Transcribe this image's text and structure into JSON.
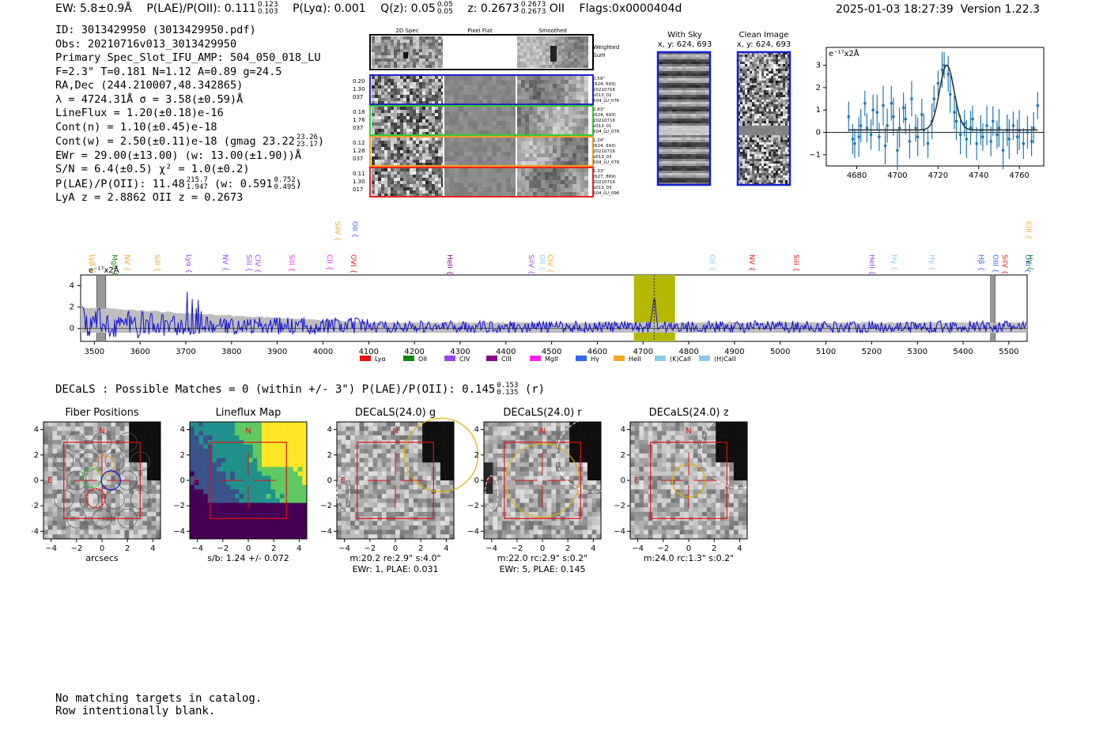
{
  "header": {
    "ew": "EW: 5.8±0.9Å",
    "plae_label": "P(LAE)/P(OII): 0.111",
    "plae_hi": "0.123",
    "plae_lo": "0.103",
    "plya": "P(Lyα): 0.001",
    "qz_label": "Q(z): 0.05",
    "qz_hi": "0.05",
    "qz_lo": "0.05",
    "z_label": "z: 0.2673",
    "z_hi": "0.2673",
    "z_lo": "0.2673",
    "z_line": "OII",
    "flags": "Flags:0x0000404d",
    "timestamp": "2025-01-03 18:27:39",
    "version": "Version 1.22.3"
  },
  "info": {
    "id": "ID: 3013429950 (3013429950.pdf)",
    "obs": "Obs: 20210716v013_3013429950",
    "primary": "Primary Spec_Slot_IFU_AMP: 504_050_018_LU",
    "fit": "F=2.3\"  T=0.181  N=1.12  A=0.89  g=24.5",
    "radec": "RA,Dec (244.210007,48.342865)",
    "lambda": "λ = 4724.31Å  σ = 3.58(±0.59)Å",
    "lineflux": "LineFlux = 1.20(±0.18)e-16",
    "contn": "Cont(n) = 1.10(±0.45)e-18",
    "contw": "Cont(w) = 2.50(±0.11)e-18 (gmag 23.22",
    "contw_hi": "23.26",
    "contw_lo": "23.17",
    "contw_end": ")",
    "ewr": "EWr = 29.00(±13.00) (w: 13.00(±1.90))Å",
    "sn": "S/N = 6.4(±0.5)  χ² = 1.0(±0.2)",
    "plae": "P(LAE)/P(OII): 11.48",
    "plae_hi": "215.7",
    "plae_lo": "1.947",
    "plae_w": "(w: 0.591",
    "plae_w_hi": "0.752",
    "plae_w_lo": "0.495",
    "plae_end": ")",
    "lya_oii": "LyA z = 2.8862  OII z = 0.2673"
  },
  "cutouts": {
    "col_titles": [
      "2D Spec",
      "Pixel Flat",
      "Smoothed"
    ],
    "weighted_label": "Weighted Sum",
    "rows": [
      {
        "left": [
          "0.20",
          "1.30",
          "037"
        ],
        "right": [
          "0.59\"",
          "(624, 693)",
          "20210716",
          "v013_02",
          "504_LU_076"
        ],
        "color": "#2222cc"
      },
      {
        "left": [
          "0.18",
          "1.76",
          "037"
        ],
        "right": [
          "0.83\"",
          "(624, 693)",
          "20210716",
          "v013_01",
          "504_LU_076"
        ],
        "color": "#33cc33"
      },
      {
        "left": [
          "0.12",
          "1.28",
          "037"
        ],
        "right": [
          "1.24\"",
          "(624, 693)",
          "20210716",
          "v013_03",
          "504_LU_078"
        ],
        "color": "#f0a020"
      },
      {
        "left": [
          "0.11",
          "1.30",
          "017"
        ],
        "right": [
          "1.33\"",
          "(627, 869)",
          "20210716",
          "v013_03",
          "504_LU_096"
        ],
        "color": "#ee2222"
      }
    ],
    "with_sky_title": "With Sky",
    "with_sky_xy": "x, y: 624, 693",
    "clean_title": "Clean Image",
    "clean_xy": "x, y: 624, 693"
  },
  "zoom_fit": {
    "unit_label": "e⁻¹⁷x2Å",
    "xticks": [
      "4680",
      "4700",
      "4720",
      "4740",
      "4760"
    ],
    "yticks": [
      "3",
      "2",
      "1",
      "0",
      "−1"
    ]
  },
  "spectrum": {
    "unit_label": "e⁻¹⁷x2Å",
    "xticks": [
      "3500",
      "3600",
      "3700",
      "3800",
      "3900",
      "4000",
      "4100",
      "4200",
      "4300",
      "4400",
      "4500",
      "4600",
      "4700",
      "4800",
      "4900",
      "5000",
      "5100",
      "5200",
      "5300",
      "5400",
      "5500"
    ],
    "yticks": [
      "4",
      "2",
      "0"
    ],
    "legend": [
      {
        "label": "Lyα",
        "color": "#ee1111"
      },
      {
        "label": "OII",
        "color": "#118811"
      },
      {
        "label": "CIV",
        "color": "#9944ee"
      },
      {
        "label": "CIII",
        "color": "#880088"
      },
      {
        "label": "MgII",
        "color": "#ff22ee"
      },
      {
        "label": "Hγ",
        "color": "#3366ee"
      },
      {
        "label": "HeII",
        "color": "#f5a623"
      },
      {
        "label": "(K)CaII",
        "color": "#88ccee"
      },
      {
        "label": "(H)CaII",
        "color": "#88ccee"
      }
    ],
    "line_labels": [
      {
        "text": "Lyβ",
        "color": "#f5a623"
      },
      {
        "text": "MgII",
        "color": "#118811"
      },
      {
        "text": "NV",
        "color": "#f5a623"
      },
      {
        "text": "SiII",
        "color": "#f5a623"
      },
      {
        "text": "Lyα",
        "color": "#9944ee"
      },
      {
        "text": "NV",
        "color": "#9944ee"
      },
      {
        "text": "SiII",
        "color": "#9944ee"
      },
      {
        "text": "CIV",
        "color": "#9944ee"
      },
      {
        "text": "SiII",
        "color": "#ff22ee"
      },
      {
        "text": "CII",
        "color": "#ff22ee"
      },
      {
        "text": "SiIV",
        "color": "#f5a623"
      },
      {
        "text": "OVI",
        "color": "#ee1111"
      },
      {
        "text": "OII",
        "color": "#3366ee"
      },
      {
        "text": "HeII",
        "color": "#880088"
      },
      {
        "text": "SiIV",
        "color": "#9944ee"
      },
      {
        "text": "OII",
        "color": "#88ccee"
      },
      {
        "text": "CIV",
        "color": "#f5a623"
      },
      {
        "text": "OII",
        "color": "#88ccee"
      },
      {
        "text": "NV",
        "color": "#ee1111"
      },
      {
        "text": "SiII",
        "color": "#ee1111"
      },
      {
        "text": "HeII",
        "color": "#9944ee"
      },
      {
        "text": "Hγ",
        "color": "#88ccee"
      },
      {
        "text": "Hγ",
        "color": "#88ccee"
      },
      {
        "text": "Hβ",
        "color": "#3366ee"
      },
      {
        "text": "OIII",
        "color": "#3366ee"
      },
      {
        "text": "SiIV",
        "color": "#ee1111"
      },
      {
        "text": "OIII",
        "color": "#3366ee"
      },
      {
        "text": "CIII",
        "color": "#f5a623"
      },
      {
        "text": "Hγ",
        "color": "#118811"
      }
    ]
  },
  "decals": {
    "summary": "DECaLS : Possible Matches = 0 (within +/- 3\")  P(LAE)/P(OII): 0.145",
    "summary_hi": "0.153",
    "summary_lo": "0.135",
    "summary_band": "(r)",
    "axis_ticks_x": [
      "−4",
      "−2",
      "0",
      "2",
      "4"
    ],
    "axis_ticks_y": [
      "4",
      "2",
      "0",
      "−2",
      "−4"
    ],
    "compass_n": "N",
    "compass_e": "E",
    "panels": [
      {
        "title": "Fiber Positions",
        "caption1": "arcsecs",
        "caption2": ""
      },
      {
        "title": "Lineflux Map",
        "caption1": "s/b: 1.24 +/- 0.072",
        "caption2": ""
      },
      {
        "title": "DECaLS(24.0) g",
        "caption1": "m:20.2  re:2.9\"  s:4.0\"",
        "caption2": "EWr: 1, PLAE: 0.031"
      },
      {
        "title": "DECaLS(24.0) r",
        "caption1": "m:22.0 rc:2.9\"  s:0.2\"",
        "caption2": "EWr: 5, PLAE: 0.145"
      },
      {
        "title": "DECaLS(24.0) z",
        "caption1": "m:24.0 rc:1.3\"  s:0.2\"",
        "caption2": ""
      }
    ]
  },
  "note": {
    "line1": "No matching targets in catalog.",
    "line2": "Row intentionally blank."
  },
  "chart_data": [
    {
      "type": "scatter",
      "title": "",
      "xlabel": "",
      "ylabel": "e⁻¹⁷x2Å",
      "xlim": [
        4665,
        4772
      ],
      "ylim": [
        -1.5,
        3.8
      ],
      "points": [
        [
          4676,
          0.7
        ],
        [
          4678,
          -0.3
        ],
        [
          4679,
          -0.5
        ],
        [
          4681,
          -0.2
        ],
        [
          4682,
          0.3
        ],
        [
          4684,
          1.3
        ],
        [
          4685,
          0.2
        ],
        [
          4687,
          -0.1
        ],
        [
          4688,
          1.0
        ],
        [
          4690,
          0.9
        ],
        [
          4691,
          -0.2
        ],
        [
          4693,
          1.2
        ],
        [
          4694,
          -0.6
        ],
        [
          4695,
          0.3
        ],
        [
          4697,
          1.3
        ],
        [
          4698,
          0.7
        ],
        [
          4700,
          -0.8
        ],
        [
          4701,
          0.2
        ],
        [
          4703,
          1.1
        ],
        [
          4704,
          0.6
        ],
        [
          4706,
          -0.4
        ],
        [
          4707,
          1.5
        ],
        [
          4709,
          0.2
        ],
        [
          4710,
          -0.2
        ],
        [
          4712,
          0.8
        ],
        [
          4713,
          0.1
        ],
        [
          4715,
          -0.5
        ],
        [
          4717,
          0.5
        ],
        [
          4718,
          1.5
        ],
        [
          4720,
          2.2
        ],
        [
          4722,
          2.8
        ],
        [
          4723,
          3.0
        ],
        [
          4725,
          2.6
        ],
        [
          4726,
          1.7
        ],
        [
          4728,
          0.9
        ],
        [
          4729,
          0.5
        ],
        [
          4731,
          -0.1
        ],
        [
          4733,
          0.4
        ],
        [
          4734,
          -0.3
        ],
        [
          4736,
          0.2
        ],
        [
          4737,
          0.6
        ],
        [
          4739,
          -0.5
        ],
        [
          4741,
          0.1
        ],
        [
          4742,
          -0.2
        ],
        [
          4744,
          0.3
        ],
        [
          4746,
          -0.4
        ],
        [
          4747,
          0.5
        ],
        [
          4749,
          -0.1
        ],
        [
          4750,
          0.2
        ],
        [
          4752,
          -0.8
        ],
        [
          4754,
          0.1
        ],
        [
          4755,
          -0.3
        ],
        [
          4757,
          0.3
        ],
        [
          4759,
          -0.2
        ],
        [
          4760,
          0.1
        ],
        [
          4762,
          -0.5
        ],
        [
          4764,
          0.0
        ],
        [
          4766,
          -0.4
        ],
        [
          4767,
          0.2
        ],
        [
          4769,
          1.2
        ]
      ],
      "fit": {
        "type": "gaussian",
        "center": 4724.31,
        "sigma": 3.58,
        "continuum": 0.11,
        "peak": 2.9
      }
    },
    {
      "type": "line",
      "title": "",
      "xlabel": "",
      "ylabel": "e⁻¹⁷x2Å",
      "xlim": [
        3470,
        5540
      ],
      "ylim": [
        -1.2,
        5.0
      ],
      "series": [
        {
          "name": "",
          "note_values": "noise-like flux ~0-2, emission at 4724",
          "color": "#1010dd"
        },
        {
          "name": "",
          "note_values": "error band grey",
          "color": "#bdbdbd"
        }
      ],
      "highlight": {
        "from": 4680,
        "to": 4770,
        "color": "#b5b800"
      },
      "line_marker": 4724.31,
      "masked": [
        [
          3505,
          3525
        ],
        [
          5460,
          5470
        ]
      ]
    }
  ]
}
